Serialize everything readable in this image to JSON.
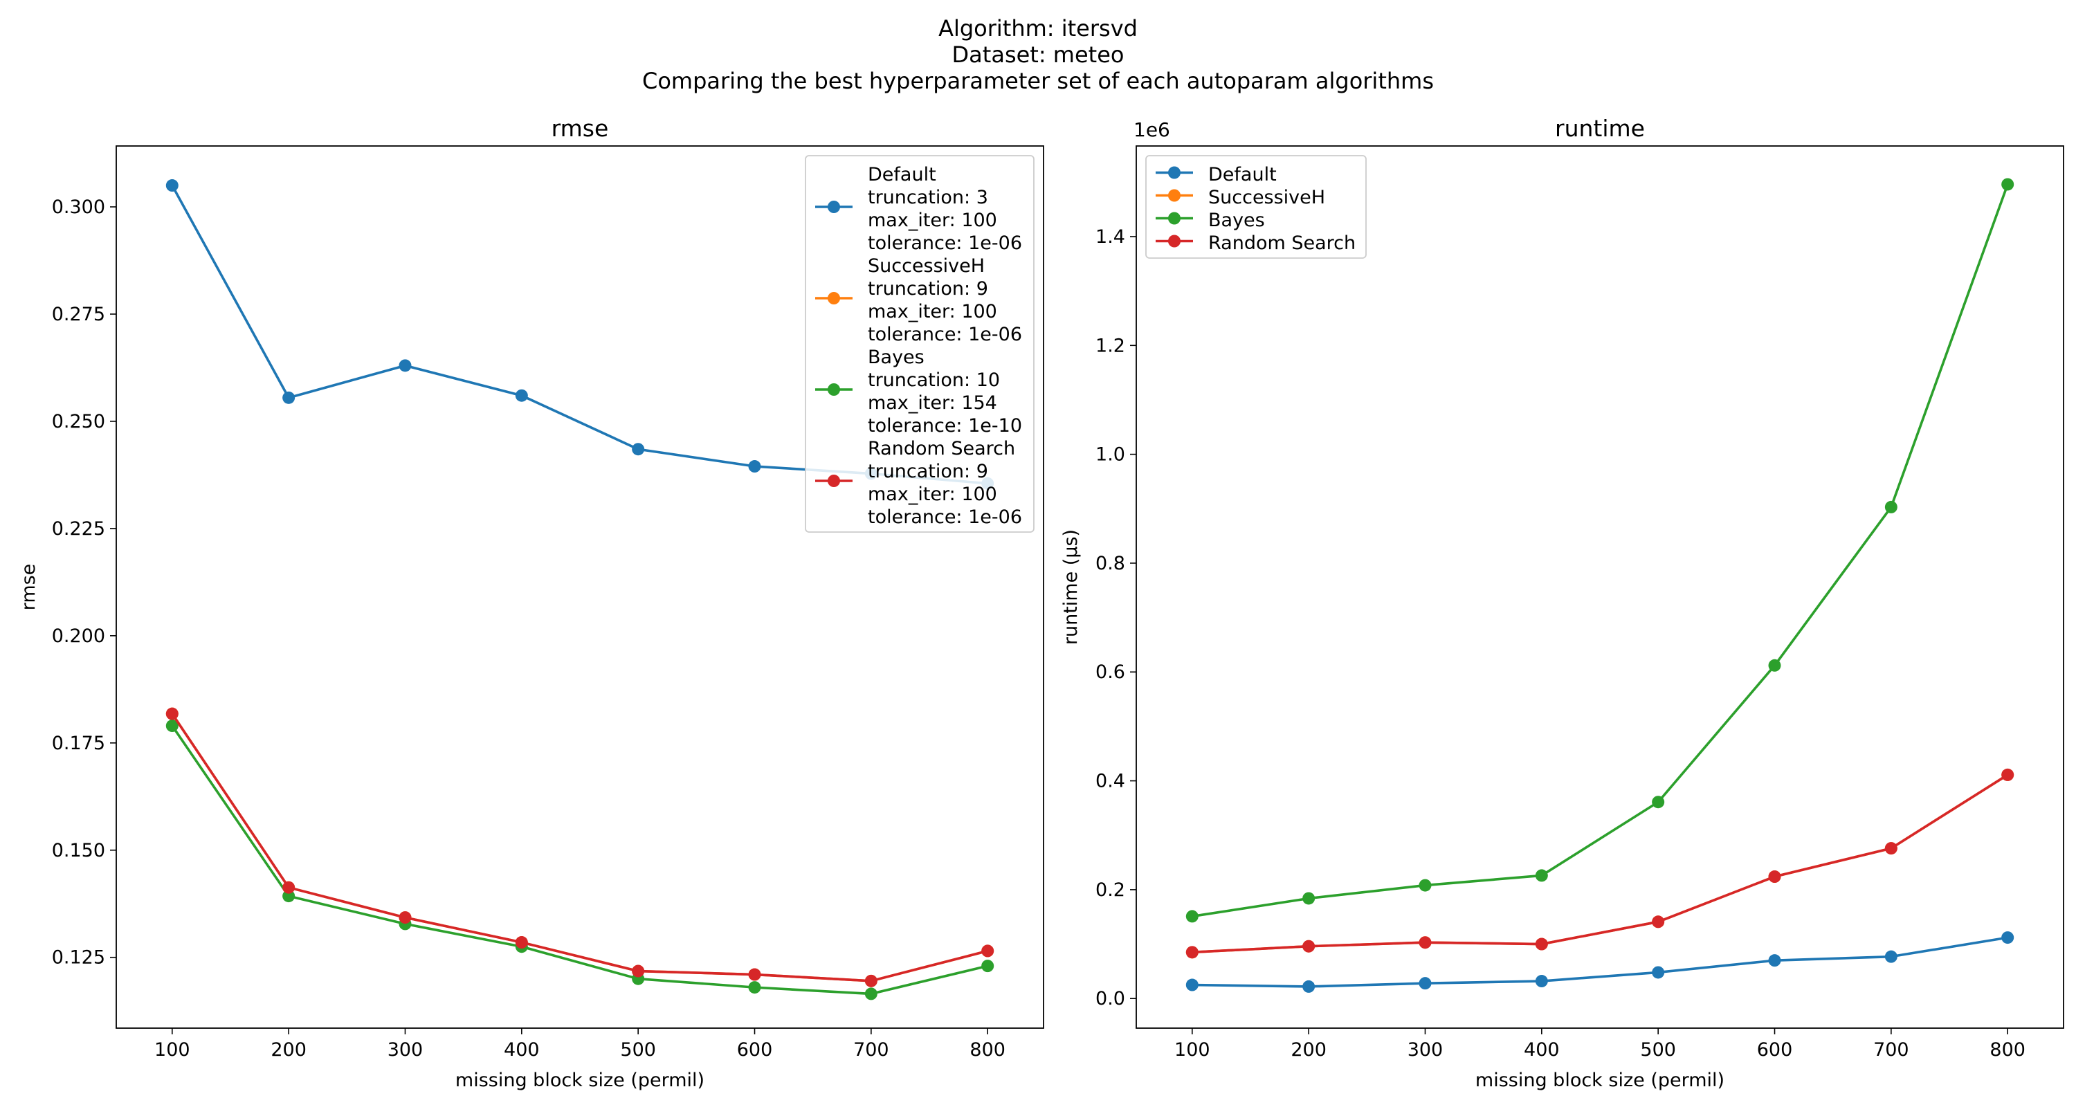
{
  "suptitle": {
    "line1": "Algorithm: itersvd",
    "line2": "Dataset: meteo",
    "line3": "Comparing the best hyperparameter set of each autoparam algorithms"
  },
  "colors": {
    "Default": "#1f77b4",
    "SuccessiveH": "#ff7f0e",
    "Bayes": "#2ca02c",
    "Random Search": "#d62728"
  },
  "chart_data": [
    {
      "type": "line",
      "title": "rmse",
      "xlabel": "missing block size (permil)",
      "ylabel": "rmse",
      "x": [
        100,
        200,
        300,
        400,
        500,
        600,
        700,
        800
      ],
      "xticks": [
        100,
        200,
        300,
        400,
        500,
        600,
        700,
        800
      ],
      "xlim": [
        52,
        848
      ],
      "ylim": [
        0.1085,
        0.3142
      ],
      "yticks": [
        "0.125",
        "0.150",
        "0.175",
        "0.200",
        "0.225",
        "0.250",
        "0.275",
        "0.300"
      ],
      "grid": false,
      "legend_position": "top-right",
      "series": [
        {
          "name": "Default",
          "legend_text": [
            "Default",
            "truncation: 3",
            "max_iter: 100",
            "tolerance: 1e-06"
          ],
          "values": [
            0.305,
            0.2555,
            0.263,
            0.256,
            0.2435,
            0.2395,
            0.2378,
            0.2355
          ]
        },
        {
          "name": "SuccessiveH",
          "legend_text": [
            "SuccessiveH",
            "truncation: 9",
            "max_iter: 100",
            "tolerance: 1e-06"
          ],
          "values": [
            0.1818,
            0.1413,
            0.1343,
            0.1285,
            0.1218,
            0.121,
            0.1195,
            0.1265
          ]
        },
        {
          "name": "Bayes",
          "legend_text": [
            "Bayes",
            "truncation: 10",
            "max_iter: 154",
            "tolerance: 1e-10"
          ],
          "values": [
            0.179,
            0.1393,
            0.1328,
            0.1275,
            0.12,
            0.118,
            0.1165,
            0.123
          ]
        },
        {
          "name": "Random Search",
          "legend_text": [
            "Random Search",
            "truncation: 9",
            "max_iter: 100",
            "tolerance: 1e-06"
          ],
          "values": [
            0.1818,
            0.1413,
            0.1343,
            0.1285,
            0.1218,
            0.121,
            0.1195,
            0.1265
          ]
        }
      ]
    },
    {
      "type": "line",
      "title": "runtime",
      "xlabel": "missing block size (permil)",
      "ylabel": "runtime (µs)",
      "offset_label": "1e6",
      "x": [
        100,
        200,
        300,
        400,
        500,
        600,
        700,
        800
      ],
      "xticks": [
        100,
        200,
        300,
        400,
        500,
        600,
        700,
        800
      ],
      "xlim": [
        52,
        848
      ],
      "ylim": [
        -0.0544,
        1.5665
      ],
      "yticks": [
        "0.0",
        "0.2",
        "0.4",
        "0.6",
        "0.8",
        "1.0",
        "1.2",
        "1.4"
      ],
      "grid": false,
      "legend_position": "top-left",
      "series": [
        {
          "name": "Default",
          "legend_text": [
            "Default"
          ],
          "values": [
            0.025,
            0.022,
            0.028,
            0.032,
            0.048,
            0.07,
            0.077,
            0.112
          ]
        },
        {
          "name": "SuccessiveH",
          "legend_text": [
            "SuccessiveH"
          ],
          "values": [
            0.085,
            0.096,
            0.103,
            0.1,
            0.141,
            0.224,
            0.276,
            0.411
          ]
        },
        {
          "name": "Bayes",
          "legend_text": [
            "Bayes"
          ],
          "values": [
            0.151,
            0.184,
            0.208,
            0.226,
            0.361,
            0.612,
            0.903,
            1.496
          ]
        },
        {
          "name": "Random Search",
          "legend_text": [
            "Random Search"
          ],
          "values": [
            0.085,
            0.096,
            0.103,
            0.1,
            0.141,
            0.224,
            0.276,
            0.411
          ]
        }
      ]
    }
  ]
}
